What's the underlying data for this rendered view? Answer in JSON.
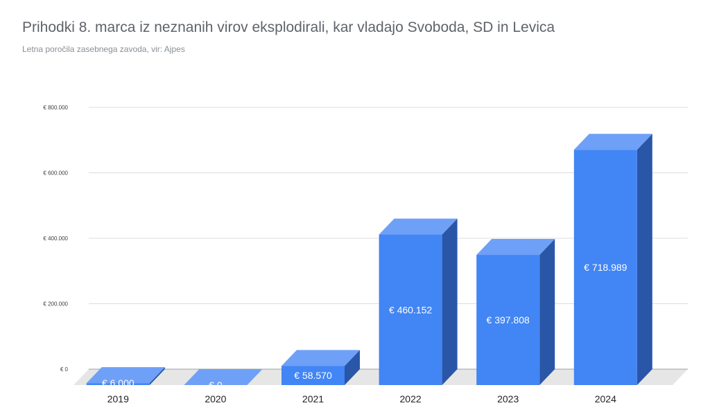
{
  "title": "Prihodki 8. marca iz neznanih virov eksplodirali, kar vladajo Svoboda, SD in Levica",
  "subtitle": "Letna poročila zasebnega zavoda, vir: Ajpes",
  "chart_data": {
    "type": "bar",
    "style": "3d-column",
    "categories": [
      "2019",
      "2020",
      "2021",
      "2022",
      "2023",
      "2024"
    ],
    "values": [
      6000,
      0,
      58570,
      460152,
      397808,
      718989
    ],
    "data_labels": [
      "€ 6.000",
      "€ 0",
      "€ 58.570",
      "€ 460.152",
      "€ 397.808",
      "€ 718.989"
    ],
    "y_ticks": [
      0,
      200000,
      400000,
      600000,
      800000
    ],
    "y_tick_labels": [
      "€ 0",
      "€ 200.000",
      "€ 400.000",
      "€ 600.000",
      "€ 800.000"
    ],
    "ylim": [
      0,
      800000
    ],
    "grid": true,
    "legend": "none",
    "colors": {
      "front": "#4285f4",
      "top": "#6ea0f7",
      "side": "#2a56a8",
      "floor": "#e6e6e6",
      "grid": "#dcdcdc"
    }
  }
}
